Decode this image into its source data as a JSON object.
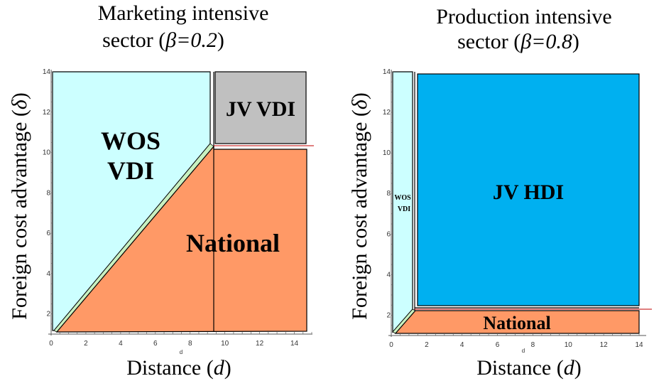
{
  "chart_data": [
    {
      "type": "area",
      "title": [
        "Marketing intensive",
        "sector (",
        "β=0.2",
        ")"
      ],
      "xlabel": [
        "Distance (",
        "d",
        ")"
      ],
      "ylabel": [
        "Foreign cost advantage (",
        "δ",
        ")"
      ],
      "xlim": [
        0,
        15
      ],
      "ylim": [
        1,
        14
      ],
      "xticks": [
        0,
        2,
        4,
        6,
        8,
        10,
        12,
        14
      ],
      "yticks": [
        2,
        4,
        6,
        8,
        10,
        12,
        14
      ],
      "small_axis_letter": "d",
      "regions": [
        {
          "name": "WOS VDI",
          "lines": [
            "WOS",
            "VDI"
          ],
          "color": "#ccffff",
          "label_at": [
            4.5,
            9.2
          ]
        },
        {
          "name": "JV VDI",
          "lines": [
            "JV VDI"
          ],
          "color": "#c0c0c0",
          "label_at": [
            12.3,
            12.5
          ]
        },
        {
          "name": "National",
          "lines": [
            "National"
          ],
          "color": "#ff9966",
          "label_at": [
            10.3,
            6.0
          ]
        }
      ]
    },
    {
      "type": "area",
      "title": [
        "Production intensive",
        "sector (",
        "β=0.8",
        ")"
      ],
      "xlabel": [
        "Distance (",
        "d",
        ")"
      ],
      "ylabel": [
        "Foreign cost advantage (",
        "δ",
        ")"
      ],
      "xlim": [
        0,
        14
      ],
      "ylim": [
        1,
        14
      ],
      "xticks": [
        0,
        2,
        4,
        6,
        8,
        10,
        12,
        14
      ],
      "yticks": [
        2,
        4,
        6,
        8,
        10,
        12,
        14
      ],
      "small_axis_letter": "d",
      "regions": [
        {
          "name": "WOS VDI",
          "lines": [
            "WOS",
            "VDI"
          ],
          "color": "#ccffff",
          "label_at": [
            0.6,
            7.8
          ]
        },
        {
          "name": "JV HDI",
          "lines": [
            "JV HDI"
          ],
          "color": "#00b0f0",
          "label_at": [
            7.3,
            8.0
          ]
        },
        {
          "name": "National",
          "lines": [
            "National"
          ],
          "color": "#ff9966",
          "label_at": [
            7.3,
            1.6
          ]
        }
      ]
    }
  ]
}
